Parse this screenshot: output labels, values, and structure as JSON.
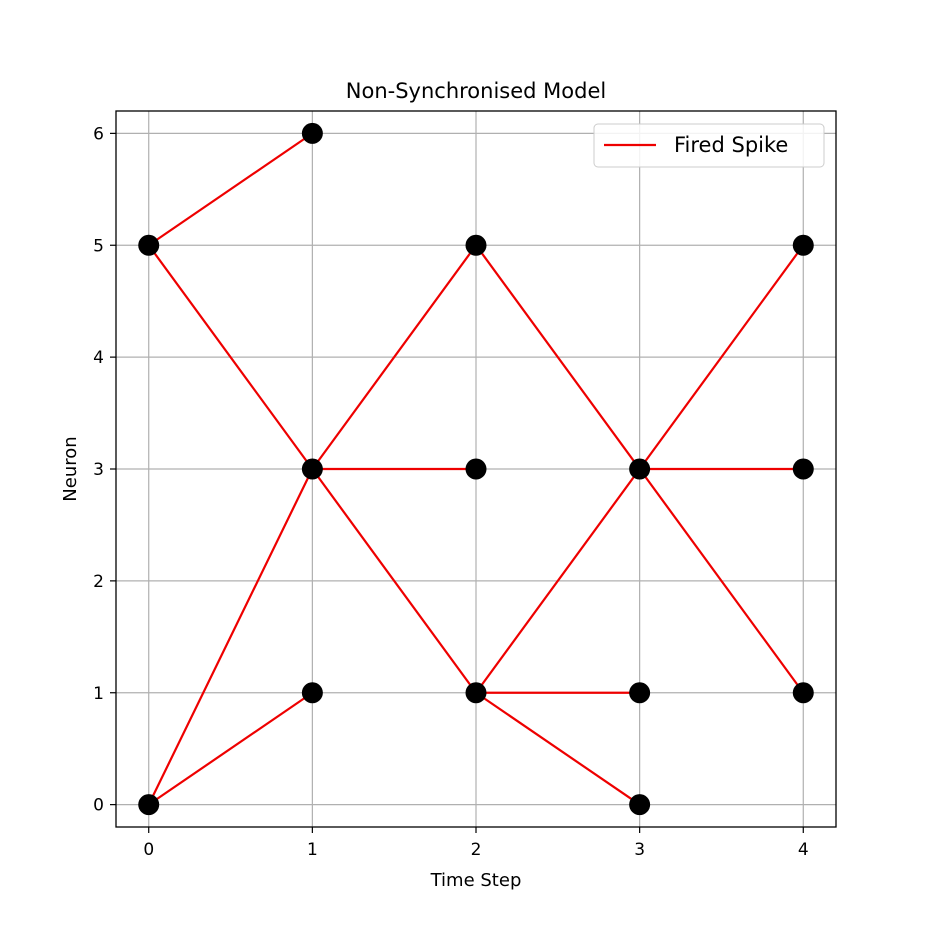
{
  "chart_data": {
    "type": "scatter",
    "title": "Non-Synchronised Model",
    "xlabel": "Time Step",
    "ylabel": "Neuron",
    "xlim": [
      -0.2,
      4.2
    ],
    "ylim": [
      -0.2,
      6.2
    ],
    "xticks": [
      "0",
      "1",
      "2",
      "3",
      "4"
    ],
    "yticks": [
      "0",
      "1",
      "2",
      "3",
      "4",
      "5",
      "6"
    ],
    "grid": true,
    "legend": {
      "position": "top-right",
      "entries": [
        "Fired Spike"
      ]
    },
    "colors": {
      "spike": "#ee0000",
      "point": "#000000",
      "grid": "#b0b0b0"
    },
    "points": [
      {
        "x": 0,
        "y": 0
      },
      {
        "x": 0,
        "y": 5
      },
      {
        "x": 1,
        "y": 6
      },
      {
        "x": 1,
        "y": 3
      },
      {
        "x": 1,
        "y": 1
      },
      {
        "x": 2,
        "y": 5
      },
      {
        "x": 2,
        "y": 3
      },
      {
        "x": 2,
        "y": 1
      },
      {
        "x": 3,
        "y": 3
      },
      {
        "x": 3,
        "y": 1
      },
      {
        "x": 3,
        "y": 0
      },
      {
        "x": 4,
        "y": 5
      },
      {
        "x": 4,
        "y": 3
      },
      {
        "x": 4,
        "y": 1
      }
    ],
    "spikes": [
      {
        "from": [
          0,
          5
        ],
        "to": [
          1,
          6
        ]
      },
      {
        "from": [
          0,
          5
        ],
        "to": [
          1,
          3
        ]
      },
      {
        "from": [
          0,
          0
        ],
        "to": [
          1,
          3
        ]
      },
      {
        "from": [
          0,
          0
        ],
        "to": [
          1,
          1
        ]
      },
      {
        "from": [
          1,
          3
        ],
        "to": [
          2,
          5
        ]
      },
      {
        "from": [
          1,
          3
        ],
        "to": [
          2,
          3
        ]
      },
      {
        "from": [
          1,
          3
        ],
        "to": [
          2,
          1
        ]
      },
      {
        "from": [
          2,
          5
        ],
        "to": [
          3,
          3
        ]
      },
      {
        "from": [
          2,
          1
        ],
        "to": [
          3,
          3
        ]
      },
      {
        "from": [
          2,
          1
        ],
        "to": [
          3,
          1
        ]
      },
      {
        "from": [
          2,
          1
        ],
        "to": [
          3,
          0
        ]
      },
      {
        "from": [
          3,
          3
        ],
        "to": [
          4,
          5
        ]
      },
      {
        "from": [
          3,
          3
        ],
        "to": [
          4,
          3
        ]
      },
      {
        "from": [
          3,
          3
        ],
        "to": [
          4,
          1
        ]
      }
    ]
  }
}
